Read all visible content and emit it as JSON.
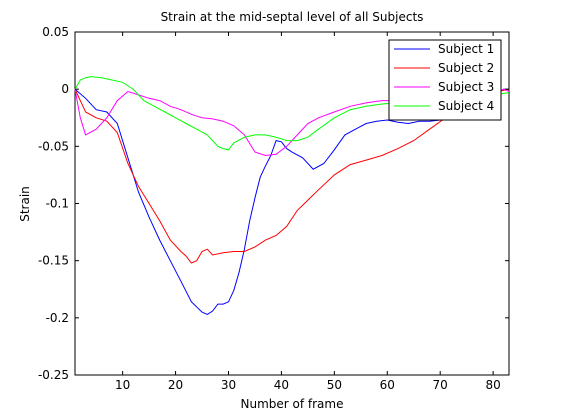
{
  "chart_data": {
    "type": "line",
    "title": "Strain at the mid-septal level of all Subjects",
    "xlabel": "Number of frame",
    "ylabel": "Strain",
    "xlim": [
      1,
      83
    ],
    "ylim": [
      -0.25,
      0.05
    ],
    "xticks": [
      10,
      20,
      30,
      40,
      50,
      60,
      70,
      80
    ],
    "yticks": [
      -0.25,
      -0.2,
      -0.15,
      -0.1,
      -0.05,
      0,
      0.05
    ],
    "ytick_labels": [
      "-0.25",
      "-0.2",
      "-0.15",
      "-0.1",
      "-0.05",
      "0",
      "0.05"
    ],
    "grid": false,
    "legend_position": "top-right",
    "series": [
      {
        "name": "Subject 1",
        "color": "#0000ff",
        "x": [
          1,
          3,
          5,
          7,
          9,
          11,
          13,
          15,
          17,
          19,
          21,
          23,
          25,
          26,
          27,
          28,
          29,
          30,
          31,
          32,
          33,
          34,
          35,
          36,
          37,
          38,
          39,
          40,
          41,
          42,
          44,
          46,
          48,
          50,
          52,
          54,
          56,
          58,
          60,
          62,
          64,
          66,
          68,
          70,
          72,
          74,
          76,
          78,
          80,
          82,
          83
        ],
        "y": [
          0.0,
          -0.008,
          -0.018,
          -0.02,
          -0.03,
          -0.06,
          -0.09,
          -0.112,
          -0.132,
          -0.15,
          -0.168,
          -0.186,
          -0.195,
          -0.197,
          -0.194,
          -0.188,
          -0.188,
          -0.186,
          -0.176,
          -0.16,
          -0.14,
          -0.115,
          -0.095,
          -0.077,
          -0.067,
          -0.058,
          -0.045,
          -0.046,
          -0.052,
          -0.055,
          -0.06,
          -0.07,
          -0.065,
          -0.053,
          -0.04,
          -0.035,
          -0.03,
          -0.028,
          -0.027,
          -0.029,
          -0.03,
          -0.028,
          -0.028,
          -0.027,
          -0.025,
          -0.02,
          -0.015,
          -0.01,
          -0.005,
          0.0,
          0.0
        ]
      },
      {
        "name": "Subject 2",
        "color": "#ff0000",
        "x": [
          1,
          3,
          5,
          7,
          9,
          11,
          13,
          15,
          17,
          19,
          21,
          22,
          23,
          24,
          25,
          26,
          27,
          29,
          31,
          33,
          35,
          37,
          39,
          41,
          43,
          45,
          47,
          50,
          53,
          56,
          59,
          62,
          65,
          68,
          71,
          74,
          77,
          80,
          83
        ],
        "y": [
          0.0,
          -0.02,
          -0.025,
          -0.028,
          -0.038,
          -0.065,
          -0.085,
          -0.1,
          -0.115,
          -0.132,
          -0.142,
          -0.146,
          -0.152,
          -0.15,
          -0.142,
          -0.14,
          -0.145,
          -0.143,
          -0.142,
          -0.142,
          -0.138,
          -0.132,
          -0.128,
          -0.12,
          -0.106,
          -0.097,
          -0.088,
          -0.075,
          -0.066,
          -0.062,
          -0.058,
          -0.052,
          -0.045,
          -0.035,
          -0.025,
          -0.015,
          -0.008,
          -0.003,
          0.0
        ]
      },
      {
        "name": "Subject 3",
        "color": "#ff00ff",
        "x": [
          1,
          2,
          3,
          5,
          7,
          9,
          11,
          13,
          15,
          17,
          19,
          21,
          23,
          25,
          27,
          29,
          31,
          33,
          35,
          37,
          39,
          41,
          43,
          45,
          47,
          50,
          53,
          56,
          59,
          62,
          65,
          68,
          71,
          74,
          77,
          80,
          82,
          83
        ],
        "y": [
          0.0,
          -0.025,
          -0.04,
          -0.035,
          -0.025,
          -0.01,
          -0.002,
          -0.005,
          -0.008,
          -0.01,
          -0.015,
          -0.018,
          -0.022,
          -0.025,
          -0.026,
          -0.028,
          -0.032,
          -0.04,
          -0.055,
          -0.058,
          -0.057,
          -0.05,
          -0.04,
          -0.03,
          -0.025,
          -0.02,
          -0.015,
          -0.012,
          -0.01,
          -0.01,
          -0.01,
          -0.01,
          -0.01,
          -0.008,
          -0.006,
          -0.004,
          0.0,
          -0.002
        ]
      },
      {
        "name": "Subject 4",
        "color": "#00ff00",
        "x": [
          1,
          2,
          3,
          4,
          6,
          8,
          10,
          12,
          14,
          16,
          18,
          20,
          22,
          24,
          26,
          28,
          29,
          30,
          31,
          33,
          35,
          37,
          39,
          41,
          43,
          45,
          47,
          50,
          53,
          56,
          59,
          62,
          65,
          68,
          71,
          74,
          77,
          80,
          83
        ],
        "y": [
          0.0,
          0.008,
          0.01,
          0.011,
          0.01,
          0.008,
          0.006,
          0.0,
          -0.01,
          -0.015,
          -0.02,
          -0.025,
          -0.03,
          -0.035,
          -0.04,
          -0.05,
          -0.052,
          -0.053,
          -0.047,
          -0.042,
          -0.04,
          -0.04,
          -0.042,
          -0.045,
          -0.045,
          -0.042,
          -0.035,
          -0.025,
          -0.018,
          -0.015,
          -0.013,
          -0.012,
          -0.012,
          -0.012,
          -0.012,
          -0.01,
          -0.008,
          -0.005,
          -0.003
        ]
      }
    ]
  }
}
